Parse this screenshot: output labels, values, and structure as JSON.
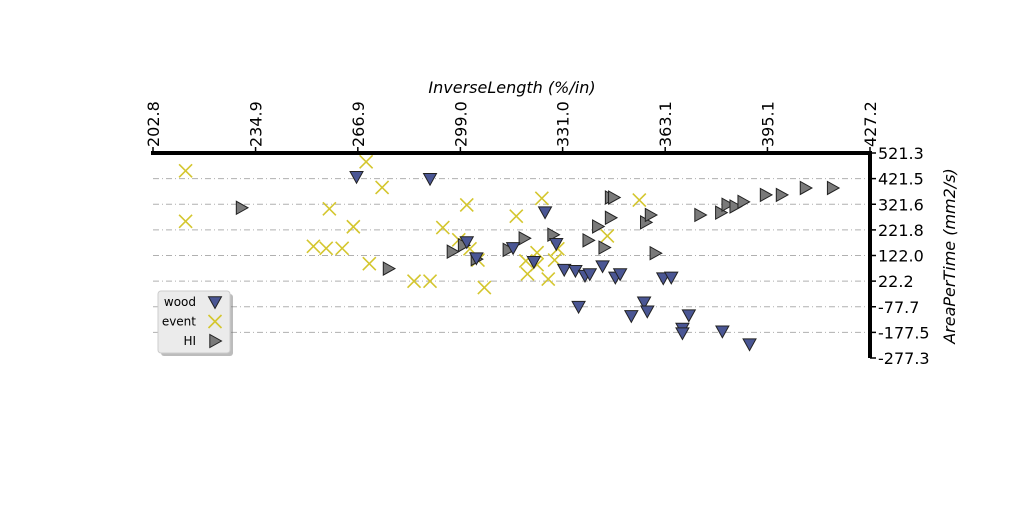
{
  "chart_data": {
    "type": "scatter",
    "title": "",
    "xlabel": "InverseLength (%/in)",
    "ylabel": "AreaPerTime (mm2/s)",
    "xlim": [
      202.8,
      427.2
    ],
    "ylim": [
      -277.3,
      521.3
    ],
    "x_ticks": [
      "202.8",
      "234.9",
      "266.9",
      "299.0",
      "331.0",
      "363.1",
      "395.1",
      "427.2"
    ],
    "y_ticks": [
      "521.3",
      "421.5",
      "321.6",
      "221.8",
      "122.0",
      "22.2",
      "-77.7",
      "-177.5",
      "-277.3"
    ],
    "x_axis_position": "top",
    "y_axis_position": "right",
    "grid": "horizontal dash-dot",
    "legend_position": "left",
    "colors": {
      "wood": "#4a5694",
      "event": "#d4c62e",
      "HI": "#7a7a7a"
    },
    "series": [
      {
        "name": "wood",
        "marker": "triangle-down",
        "points": [
          [
            266.5,
            429
          ],
          [
            289.5,
            421
          ],
          [
            301,
            175
          ],
          [
            304,
            112
          ],
          [
            315.5,
            152
          ],
          [
            322,
            98
          ],
          [
            325.5,
            291
          ],
          [
            329,
            168
          ],
          [
            331.5,
            67
          ],
          [
            335,
            63
          ],
          [
            336,
            -77
          ],
          [
            338,
            44
          ],
          [
            339.5,
            50
          ],
          [
            343.5,
            81
          ],
          [
            347.5,
            37
          ],
          [
            349,
            50
          ],
          [
            352.5,
            -113
          ],
          [
            356.5,
            -60
          ],
          [
            357.5,
            -95
          ],
          [
            362.5,
            34
          ],
          [
            365,
            37
          ],
          [
            368.5,
            -162
          ],
          [
            368.5,
            -180
          ],
          [
            370.5,
            -110
          ],
          [
            381,
            -173
          ],
          [
            389.5,
            -223
          ]
        ]
      },
      {
        "name": "event",
        "marker": "x",
        "points": [
          [
            213,
            452
          ],
          [
            213,
            255
          ],
          [
            253,
            158
          ],
          [
            257,
            150
          ],
          [
            258,
            304
          ],
          [
            262,
            150
          ],
          [
            265.5,
            234
          ],
          [
            269.5,
            487
          ],
          [
            270.5,
            90
          ],
          [
            274.5,
            387
          ],
          [
            284.5,
            22
          ],
          [
            289.5,
            22
          ],
          [
            293.5,
            231
          ],
          [
            298.5,
            183
          ],
          [
            301,
            319
          ],
          [
            302,
            148
          ],
          [
            304.5,
            104
          ],
          [
            306.5,
            -3
          ],
          [
            316.5,
            275
          ],
          [
            319.5,
            101
          ],
          [
            320,
            50
          ],
          [
            323,
            86
          ],
          [
            323,
            133
          ],
          [
            324.5,
            345
          ],
          [
            326.5,
            30
          ],
          [
            328.5,
            104
          ],
          [
            329.5,
            148
          ],
          [
            345,
            198
          ],
          [
            355,
            338
          ]
        ]
      },
      {
        "name": "HI",
        "marker": "triangle-right",
        "points": [
          [
            230.5,
            308
          ],
          [
            276.5,
            71
          ],
          [
            296.5,
            137
          ],
          [
            300,
            162
          ],
          [
            304,
            108
          ],
          [
            314,
            144
          ],
          [
            319,
            189
          ],
          [
            328,
            203
          ],
          [
            339,
            181
          ],
          [
            342,
            235
          ],
          [
            344,
            153
          ],
          [
            346,
            269
          ],
          [
            346,
            348
          ],
          [
            347,
            348
          ],
          [
            357,
            251
          ],
          [
            358.5,
            280
          ],
          [
            360,
            131
          ],
          [
            374,
            280
          ],
          [
            380.5,
            289
          ],
          [
            382.5,
            320
          ],
          [
            385,
            313
          ],
          [
            387.5,
            331
          ],
          [
            394.5,
            358
          ],
          [
            399.5,
            358
          ],
          [
            407,
            385
          ],
          [
            415.5,
            385
          ]
        ]
      }
    ]
  }
}
